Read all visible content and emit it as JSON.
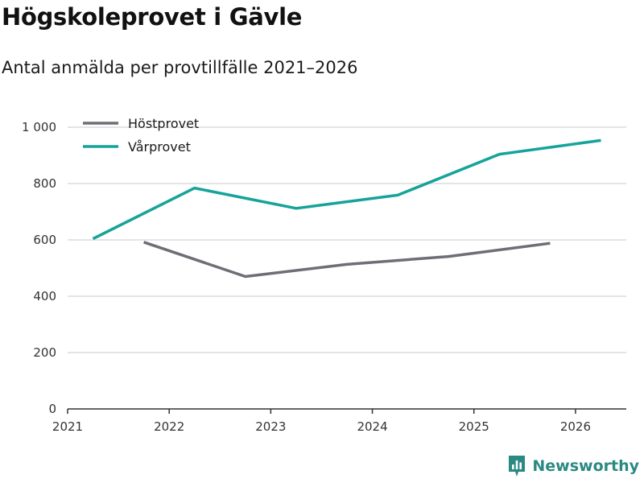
{
  "title": "Högskoleprovet i Gävle",
  "subtitle": "Antal anmälda per provtillfälle 2021–2026",
  "brand": {
    "name": "Newsworthy",
    "icon": "newsworthy-logo-icon",
    "color": "#2a8a82"
  },
  "chart_data": {
    "type": "line",
    "title": "Högskoleprovet i Gävle",
    "subtitle": "Antal anmälda per provtillfälle 2021–2026",
    "xlabel": "",
    "ylabel": "",
    "xlim": [
      2021,
      2026.5
    ],
    "ylim": [
      0,
      1000
    ],
    "x_ticks": [
      2021,
      2022,
      2023,
      2024,
      2025,
      2026
    ],
    "x_tick_labels": [
      "2021",
      "2022",
      "2023",
      "2024",
      "2025",
      "2026"
    ],
    "y_ticks": [
      0,
      200,
      400,
      600,
      800,
      1000
    ],
    "y_tick_labels": [
      "0",
      "200",
      "400",
      "600",
      "800",
      "1 000"
    ],
    "grid": "horizontal",
    "legend_position": "top-left",
    "series": [
      {
        "name": "Höstprovet",
        "color": "#6f6e76",
        "x": [
          2021.75,
          2022.75,
          2023.75,
          2024.75,
          2025.75
        ],
        "values": [
          592,
          470,
          513,
          541,
          588
        ]
      },
      {
        "name": "Vårprovet",
        "color": "#16a39a",
        "x": [
          2021.25,
          2022.25,
          2023.25,
          2024.25,
          2025.25,
          2026.25
        ],
        "values": [
          604,
          784,
          712,
          759,
          904,
          953
        ]
      }
    ]
  }
}
